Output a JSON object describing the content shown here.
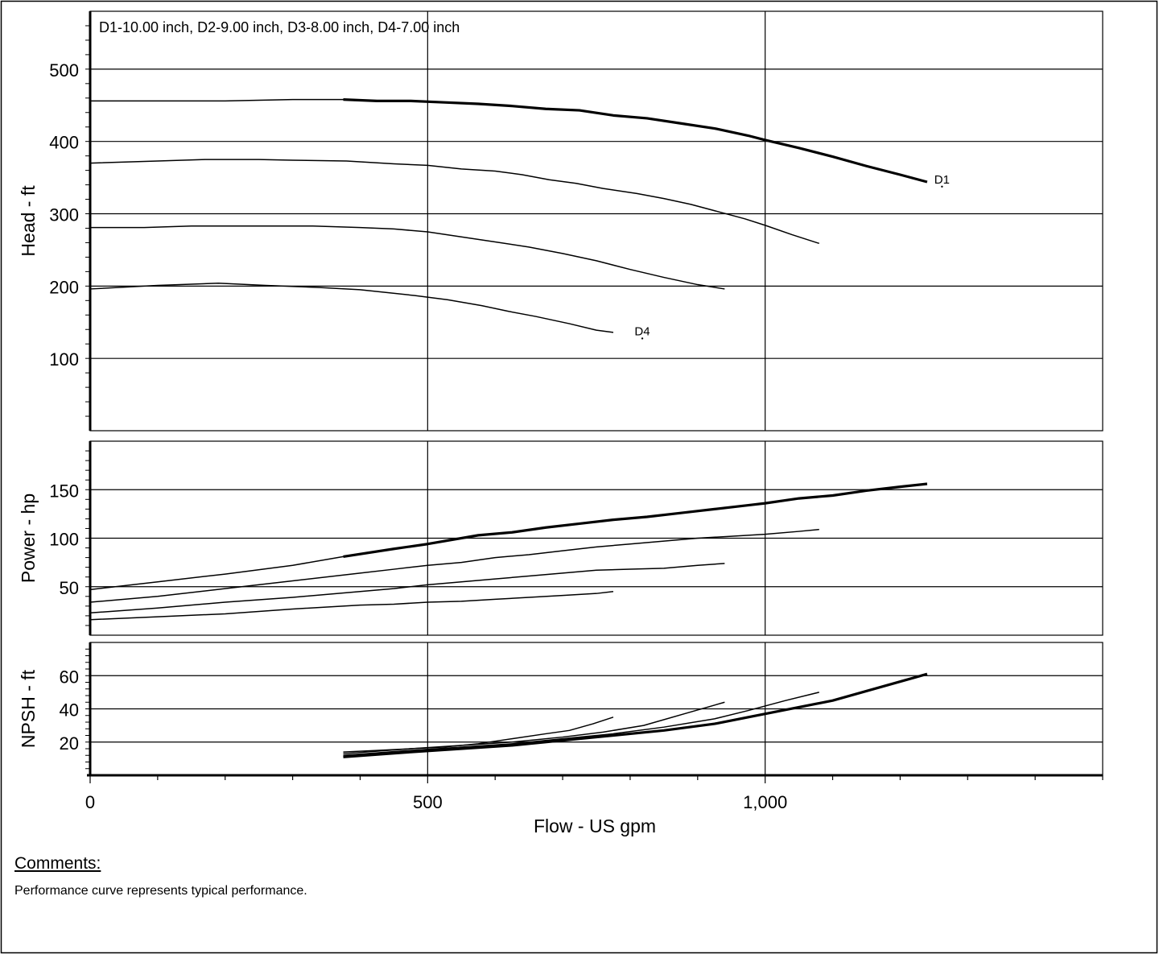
{
  "chart_data": {
    "type": "line",
    "legend_text": "D1-10.00 inch,  D2-9.00 inch,  D3-8.00 inch,  D4-7.00 inch",
    "xlabel": "Flow - US gpm",
    "xlim": [
      0,
      1500
    ],
    "x_ticks": [
      0,
      500,
      1000
    ],
    "x_tick_labels": [
      "0",
      "500",
      "1,000"
    ],
    "panels": [
      {
        "ylabel": "Head - ft",
        "ylim": [
          0,
          580
        ],
        "y_ticks": [
          100,
          200,
          300,
          400,
          500
        ],
        "y_tick_labels": [
          "100",
          "200",
          "300",
          "400",
          "500"
        ],
        "series": [
          {
            "name": "D1",
            "label": "D1",
            "label_at": [
              1262,
              342
            ],
            "bold": true,
            "bold_from": 375,
            "x": [
              0,
              100,
              200,
              300,
              375,
              425,
              475,
              525,
              575,
              625,
              675,
              725,
              775,
              825,
              875,
              925,
              975,
              1000,
              1050,
              1100,
              1150,
              1200,
              1240
            ],
            "y": [
              456,
              456,
              456,
              458,
              458,
              456,
              456,
              454,
              452,
              449,
              445,
              443,
              436,
              432,
              425,
              418,
              408,
              402,
              391,
              379,
              366,
              354,
              344
            ]
          },
          {
            "x": [
              0,
              100,
              170,
              250,
              300,
              380,
              450,
              500,
              550,
              600,
              640,
              680,
              720,
              760,
              810,
              850,
              890,
              930,
              970,
              1000,
              1040,
              1080
            ],
            "y": [
              370,
              373,
              375,
              375,
              374,
              373,
              369,
              367,
              362,
              359,
              354,
              347,
              342,
              335,
              328,
              321,
              313,
              303,
              293,
              284,
              271,
              259
            ]
          },
          {
            "x": [
              0,
              80,
              150,
              250,
              330,
              400,
              450,
              500,
              550,
              600,
              650,
              700,
              750,
              800,
              850,
              900,
              940
            ],
            "y": [
              281,
              281,
              283,
              283,
              283,
              281,
              279,
              275,
              268,
              261,
              254,
              245,
              235,
              223,
              212,
              202,
              196
            ]
          },
          {
            "name": "D4",
            "label": "D4",
            "label_at": [
              818,
              132
            ],
            "x": [
              0,
              100,
              190,
              260,
              340,
              400,
              480,
              530,
              580,
              620,
              660,
              710,
              750,
              775
            ],
            "y": [
              196,
              201,
              204,
              201,
              198,
              195,
              187,
              181,
              173,
              165,
              158,
              148,
              139,
              136
            ]
          }
        ]
      },
      {
        "ylabel": "Power - hp",
        "ylim": [
          0,
          200
        ],
        "y_ticks": [
          50,
          100,
          150
        ],
        "y_tick_labels": [
          "50",
          "100",
          "150"
        ],
        "series": [
          {
            "name": "D1",
            "bold": true,
            "bold_from": 375,
            "x": [
              0,
              100,
              200,
              300,
              375,
              450,
              500,
              575,
              625,
              675,
              725,
              775,
              825,
              875,
              925,
              975,
              1000,
              1050,
              1100,
              1150,
              1200,
              1240
            ],
            "y": [
              47,
              55,
              63,
              72,
              81,
              89,
              94,
              103,
              106,
              111,
              115,
              119,
              122,
              126,
              130,
              134,
              136,
              141,
              144,
              149,
              153,
              156
            ]
          },
          {
            "x": [
              0,
              100,
              200,
              300,
              400,
              450,
              500,
              550,
              600,
              650,
              700,
              750,
              800,
              850,
              900,
              950,
              1000,
              1050,
              1080
            ],
            "y": [
              34,
              40,
              48,
              56,
              64,
              68,
              72,
              75,
              80,
              83,
              87,
              91,
              94,
              97,
              100,
              102,
              104,
              107,
              109
            ]
          },
          {
            "x": [
              0,
              100,
              200,
              300,
              400,
              450,
              500,
              550,
              600,
              650,
              700,
              750,
              800,
              850,
              900,
              940
            ],
            "y": [
              23,
              28,
              34,
              39,
              45,
              48,
              52,
              55,
              58,
              61,
              64,
              67,
              68,
              69,
              72,
              74
            ]
          },
          {
            "name": "D4",
            "x": [
              0,
              100,
              200,
              300,
              400,
              450,
              500,
              550,
              600,
              650,
              700,
              750,
              775
            ],
            "y": [
              16,
              19,
              22,
              27,
              31,
              32,
              34,
              35,
              37,
              39,
              41,
              43,
              45
            ]
          }
        ]
      },
      {
        "ylabel": "NPSH - ft",
        "ylim": [
          0,
          80
        ],
        "y_ticks": [
          20,
          40,
          60
        ],
        "y_tick_labels": [
          "20",
          "40",
          "60"
        ],
        "series": [
          {
            "name": "D1",
            "bold": true,
            "bold_from": 375,
            "x": [
              375,
              475,
              550,
              625,
              700,
              775,
              850,
              925,
              1000,
              1050,
              1100,
              1170,
              1240
            ],
            "y": [
              11,
              14,
              16,
              18,
              21,
              24,
              27,
              31,
              37,
              41,
              45,
              53,
              61
            ]
          },
          {
            "x": [
              375,
              475,
              550,
              625,
              700,
              775,
              850,
              925,
              975,
              1030,
              1080
            ],
            "y": [
              12,
              15,
              17,
              19,
              22,
              25,
              29,
              34,
              39,
              45,
              50
            ]
          },
          {
            "x": [
              375,
              475,
              550,
              625,
              700,
              760,
              820,
              880,
              940
            ],
            "y": [
              13,
              16,
              18,
              20,
              23,
              26,
              30,
              37,
              44
            ]
          },
          {
            "name": "D4",
            "x": [
              375,
              425,
              475,
              525,
              575,
              625,
              675,
              710,
              745,
              775
            ],
            "y": [
              14,
              15,
              16,
              17,
              19,
              22,
              25,
              27,
              31,
              35
            ]
          }
        ]
      }
    ]
  },
  "comments": {
    "title": "Comments:",
    "text": "Performance curve represents typical performance."
  }
}
